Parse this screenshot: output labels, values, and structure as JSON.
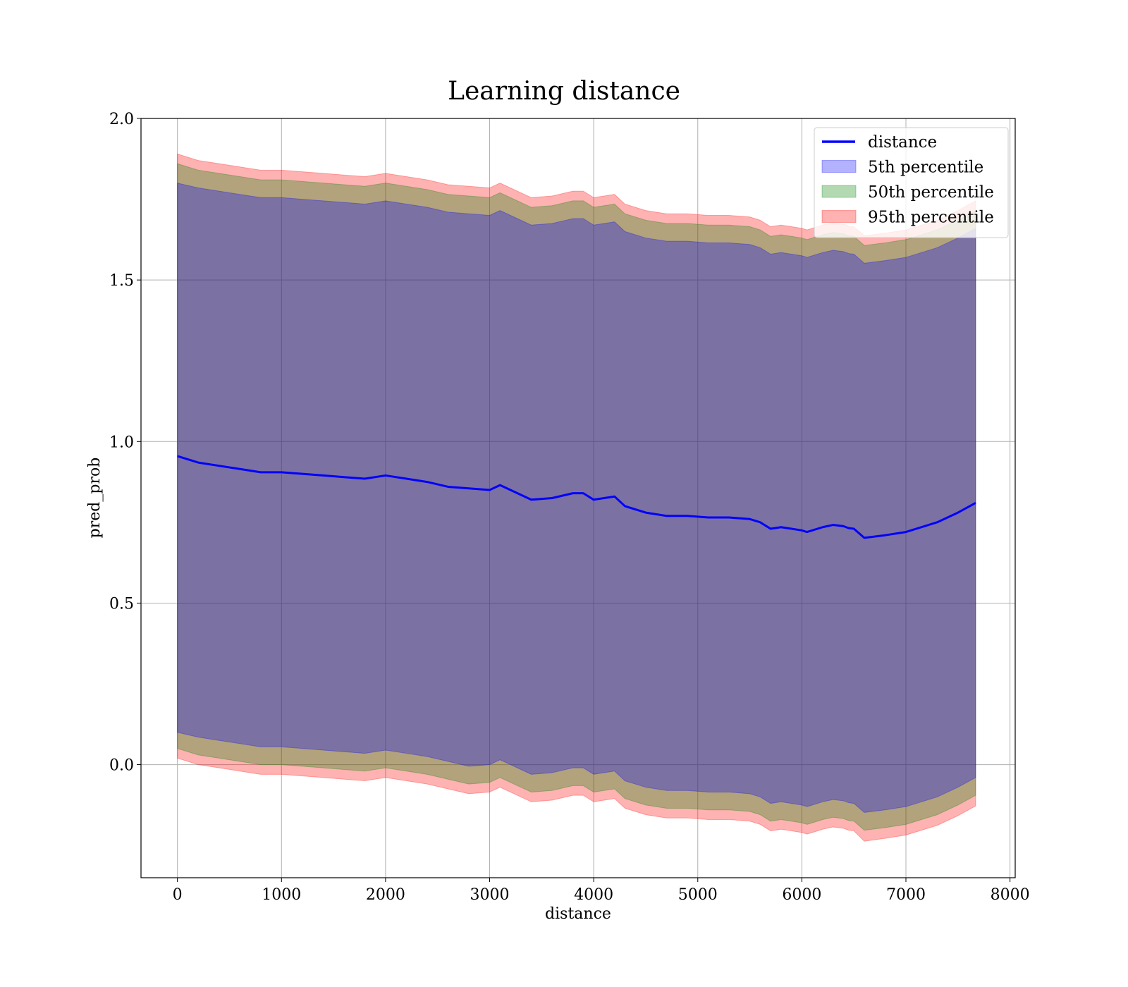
{
  "chart_data": {
    "type": "area",
    "title": "Learning distance",
    "xlabel": "distance",
    "ylabel": "pred_prob",
    "xlim": [
      -350,
      8050
    ],
    "ylim": [
      -0.35,
      2.0
    ],
    "xticks": [
      0,
      1000,
      2000,
      3000,
      4000,
      5000,
      6000,
      7000,
      8000
    ],
    "xtick_labels": [
      "0",
      "1000",
      "2000",
      "3000",
      "4000",
      "5000",
      "6000",
      "7000",
      "8000"
    ],
    "yticks": [
      0.0,
      0.5,
      1.0,
      1.5,
      2.0
    ],
    "ytick_labels": [
      "0.0",
      "0.5",
      "1.0",
      "1.5",
      "2.0"
    ],
    "grid": true,
    "legend_position": "top-right",
    "legend": [
      {
        "label": "distance",
        "kind": "line",
        "color": "#0000ff"
      },
      {
        "label": "5th percentile",
        "kind": "patch",
        "color": "#0000ff"
      },
      {
        "label": "50th percentile",
        "kind": "patch",
        "color": "#008000"
      },
      {
        "label": "95th percentile",
        "kind": "patch",
        "color": "#ff0000"
      }
    ],
    "series": [
      {
        "name": "distance",
        "color": "#0000ff",
        "x": [
          0,
          200,
          400,
          600,
          800,
          1000,
          1200,
          1400,
          1600,
          1800,
          2000,
          2200,
          2400,
          2600,
          2800,
          3000,
          3100,
          3200,
          3400,
          3600,
          3800,
          3900,
          4000,
          4100,
          4200,
          4300,
          4500,
          4700,
          4900,
          5100,
          5300,
          5500,
          5600,
          5700,
          5800,
          5900,
          6000,
          6050,
          6100,
          6200,
          6300,
          6400,
          6450,
          6500,
          6600,
          6800,
          7000,
          7300,
          7500,
          7670
        ],
        "y": [
          0.955,
          0.935,
          0.925,
          0.915,
          0.905,
          0.905,
          0.9,
          0.895,
          0.89,
          0.885,
          0.895,
          0.885,
          0.875,
          0.86,
          0.855,
          0.85,
          0.865,
          0.85,
          0.82,
          0.825,
          0.84,
          0.84,
          0.82,
          0.825,
          0.83,
          0.8,
          0.78,
          0.77,
          0.77,
          0.765,
          0.765,
          0.76,
          0.75,
          0.73,
          0.735,
          0.73,
          0.725,
          0.72,
          0.725,
          0.735,
          0.742,
          0.738,
          0.732,
          0.73,
          0.702,
          0.71,
          0.72,
          0.75,
          0.78,
          0.81
        ]
      },
      {
        "name": "5th percentile",
        "color": "#0000ff",
        "x": [
          0,
          200,
          400,
          600,
          800,
          1000,
          1200,
          1400,
          1600,
          1800,
          2000,
          2200,
          2400,
          2600,
          2800,
          3000,
          3100,
          3200,
          3400,
          3600,
          3800,
          3900,
          4000,
          4100,
          4200,
          4300,
          4500,
          4700,
          4900,
          5100,
          5300,
          5500,
          5600,
          5700,
          5800,
          5900,
          6000,
          6050,
          6100,
          6200,
          6300,
          6400,
          6450,
          6500,
          6600,
          6800,
          7000,
          7300,
          7500,
          7670
        ],
        "lower": [
          0.1,
          0.085,
          0.075,
          0.065,
          0.055,
          0.055,
          0.05,
          0.045,
          0.04,
          0.035,
          0.045,
          0.035,
          0.025,
          0.01,
          -0.005,
          -0.0,
          0.015,
          -0.0,
          -0.03,
          -0.025,
          -0.01,
          -0.01,
          -0.03,
          -0.025,
          -0.02,
          -0.05,
          -0.07,
          -0.08,
          -0.08,
          -0.085,
          -0.085,
          -0.09,
          -0.1,
          -0.12,
          -0.115,
          -0.12,
          -0.125,
          -0.13,
          -0.125,
          -0.115,
          -0.108,
          -0.112,
          -0.118,
          -0.12,
          -0.148,
          -0.14,
          -0.13,
          -0.1,
          -0.07,
          -0.04
        ],
        "upper": [
          1.8,
          1.785,
          1.775,
          1.765,
          1.755,
          1.755,
          1.75,
          1.745,
          1.74,
          1.735,
          1.745,
          1.735,
          1.725,
          1.71,
          1.705,
          1.7,
          1.715,
          1.7,
          1.67,
          1.675,
          1.69,
          1.69,
          1.67,
          1.675,
          1.68,
          1.65,
          1.63,
          1.62,
          1.62,
          1.615,
          1.615,
          1.61,
          1.6,
          1.58,
          1.585,
          1.58,
          1.575,
          1.57,
          1.575,
          1.585,
          1.592,
          1.588,
          1.582,
          1.58,
          1.552,
          1.56,
          1.57,
          1.6,
          1.63,
          1.66
        ]
      },
      {
        "name": "50th percentile",
        "color": "#008000",
        "x": [
          0,
          200,
          400,
          600,
          800,
          1000,
          1200,
          1400,
          1600,
          1800,
          2000,
          2200,
          2400,
          2600,
          2800,
          3000,
          3100,
          3200,
          3400,
          3600,
          3800,
          3900,
          4000,
          4100,
          4200,
          4300,
          4500,
          4700,
          4900,
          5100,
          5300,
          5500,
          5600,
          5700,
          5800,
          5900,
          6000,
          6050,
          6100,
          6200,
          6300,
          6400,
          6450,
          6500,
          6600,
          6800,
          7000,
          7300,
          7500,
          7670
        ],
        "lower": [
          0.05,
          0.03,
          0.02,
          0.01,
          0.0,
          0.0,
          -0.005,
          -0.01,
          -0.015,
          -0.02,
          -0.01,
          -0.02,
          -0.03,
          -0.045,
          -0.06,
          -0.055,
          -0.04,
          -0.055,
          -0.085,
          -0.08,
          -0.065,
          -0.065,
          -0.085,
          -0.08,
          -0.075,
          -0.105,
          -0.125,
          -0.135,
          -0.135,
          -0.14,
          -0.14,
          -0.145,
          -0.155,
          -0.175,
          -0.17,
          -0.175,
          -0.18,
          -0.185,
          -0.18,
          -0.17,
          -0.163,
          -0.167,
          -0.173,
          -0.175,
          -0.203,
          -0.195,
          -0.185,
          -0.155,
          -0.125,
          -0.095
        ],
        "upper": [
          1.86,
          1.84,
          1.83,
          1.82,
          1.81,
          1.81,
          1.805,
          1.8,
          1.795,
          1.79,
          1.8,
          1.79,
          1.78,
          1.765,
          1.76,
          1.755,
          1.77,
          1.755,
          1.725,
          1.73,
          1.745,
          1.745,
          1.725,
          1.73,
          1.735,
          1.705,
          1.685,
          1.675,
          1.675,
          1.67,
          1.67,
          1.665,
          1.655,
          1.635,
          1.64,
          1.635,
          1.63,
          1.625,
          1.63,
          1.64,
          1.647,
          1.643,
          1.637,
          1.635,
          1.607,
          1.615,
          1.625,
          1.655,
          1.685,
          1.715
        ]
      },
      {
        "name": "95th percentile",
        "color": "#ff0000",
        "x": [
          0,
          200,
          400,
          600,
          800,
          1000,
          1200,
          1400,
          1600,
          1800,
          2000,
          2200,
          2400,
          2600,
          2800,
          3000,
          3100,
          3200,
          3400,
          3600,
          3800,
          3900,
          4000,
          4100,
          4200,
          4300,
          4500,
          4700,
          4900,
          5100,
          5300,
          5500,
          5600,
          5700,
          5800,
          5900,
          6000,
          6050,
          6100,
          6200,
          6300,
          6400,
          6450,
          6500,
          6600,
          6800,
          7000,
          7300,
          7500,
          7670
        ],
        "lower": [
          0.02,
          0.0,
          -0.01,
          -0.02,
          -0.03,
          -0.03,
          -0.035,
          -0.04,
          -0.045,
          -0.05,
          -0.04,
          -0.05,
          -0.06,
          -0.075,
          -0.09,
          -0.085,
          -0.07,
          -0.085,
          -0.115,
          -0.11,
          -0.095,
          -0.095,
          -0.115,
          -0.11,
          -0.105,
          -0.135,
          -0.155,
          -0.165,
          -0.165,
          -0.17,
          -0.17,
          -0.175,
          -0.185,
          -0.205,
          -0.2,
          -0.205,
          -0.21,
          -0.215,
          -0.21,
          -0.2,
          -0.193,
          -0.197,
          -0.203,
          -0.205,
          -0.237,
          -0.228,
          -0.218,
          -0.188,
          -0.158,
          -0.128
        ],
        "upper": [
          1.89,
          1.87,
          1.86,
          1.85,
          1.84,
          1.84,
          1.835,
          1.83,
          1.825,
          1.82,
          1.83,
          1.82,
          1.81,
          1.795,
          1.79,
          1.785,
          1.8,
          1.785,
          1.755,
          1.76,
          1.775,
          1.775,
          1.755,
          1.76,
          1.765,
          1.735,
          1.715,
          1.705,
          1.705,
          1.7,
          1.7,
          1.695,
          1.685,
          1.665,
          1.67,
          1.665,
          1.66,
          1.655,
          1.66,
          1.67,
          1.677,
          1.673,
          1.667,
          1.665,
          1.637,
          1.645,
          1.655,
          1.685,
          1.715,
          1.745
        ]
      }
    ]
  }
}
